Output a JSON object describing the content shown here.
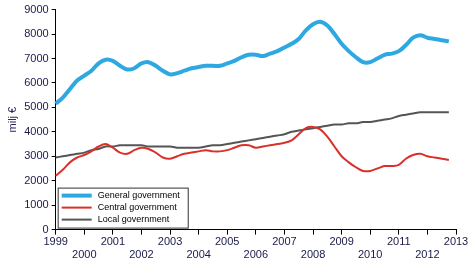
{
  "chart_data": {
    "type": "line",
    "y_label": "milj €",
    "categories": [
      "1999",
      null,
      null,
      null,
      "2000",
      null,
      null,
      null,
      "2001",
      null,
      null,
      null,
      "2002",
      null,
      null,
      null,
      "2003",
      null,
      null,
      null,
      "2004",
      null,
      null,
      null,
      "2005",
      null,
      null,
      null,
      "2006",
      null,
      null,
      null,
      "2007",
      null,
      null,
      null,
      "2008",
      null,
      null,
      null,
      "2009",
      null,
      null,
      null,
      "2010",
      null,
      null,
      null,
      "2011",
      null,
      null,
      null,
      "2012",
      null,
      null,
      null,
      "2013"
    ],
    "series": [
      {
        "name": "General government",
        "color": "#2ea8e0",
        "values": [
          5150,
          5400,
          5750,
          6100,
          6300,
          6500,
          6800,
          6950,
          6900,
          6700,
          6550,
          6600,
          6800,
          6850,
          6700,
          6500,
          6350,
          6400,
          6500,
          6600,
          6650,
          6700,
          6700,
          6700,
          6800,
          6900,
          7050,
          7150,
          7150,
          7100,
          7200,
          7300,
          7450,
          7600,
          7800,
          8150,
          8400,
          8500,
          8350,
          8000,
          7600,
          7300,
          7050,
          6850,
          6850,
          7000,
          7150,
          7200,
          7300,
          7550,
          7850,
          7950,
          7850,
          7800,
          7750,
          7700,
          null
        ]
      },
      {
        "name": "Central government",
        "color": "#d9302a",
        "values": [
          2200,
          2450,
          2750,
          2950,
          3050,
          3200,
          3400,
          3500,
          3350,
          3150,
          3100,
          3250,
          3350,
          3300,
          3150,
          2950,
          2900,
          3000,
          3100,
          3150,
          3200,
          3250,
          3200,
          3200,
          3250,
          3350,
          3450,
          3450,
          3350,
          3400,
          3450,
          3500,
          3550,
          3650,
          3900,
          4150,
          4200,
          4100,
          3800,
          3400,
          3000,
          2750,
          2550,
          2400,
          2400,
          2500,
          2600,
          2600,
          2650,
          2900,
          3050,
          3100,
          3000,
          2950,
          2900,
          2850,
          null
        ]
      },
      {
        "name": "Local government",
        "color": "#555555",
        "values": [
          2950,
          3000,
          3050,
          3100,
          3150,
          3250,
          3300,
          3400,
          3400,
          3450,
          3450,
          3450,
          3450,
          3400,
          3400,
          3400,
          3400,
          3350,
          3350,
          3350,
          3350,
          3400,
          3450,
          3450,
          3500,
          3550,
          3600,
          3650,
          3700,
          3750,
          3800,
          3850,
          3900,
          4000,
          4050,
          4100,
          4150,
          4200,
          4250,
          4300,
          4300,
          4350,
          4350,
          4400,
          4400,
          4450,
          4500,
          4550,
          4650,
          4700,
          4750,
          4800,
          4800,
          4800,
          4800,
          4800,
          null
        ]
      }
    ],
    "ylim": [
      0,
      9000
    ],
    "yticks": [
      0,
      1000,
      2000,
      3000,
      4000,
      5000,
      6000,
      7000,
      8000,
      9000
    ],
    "grid": false,
    "legend": "lower left"
  }
}
